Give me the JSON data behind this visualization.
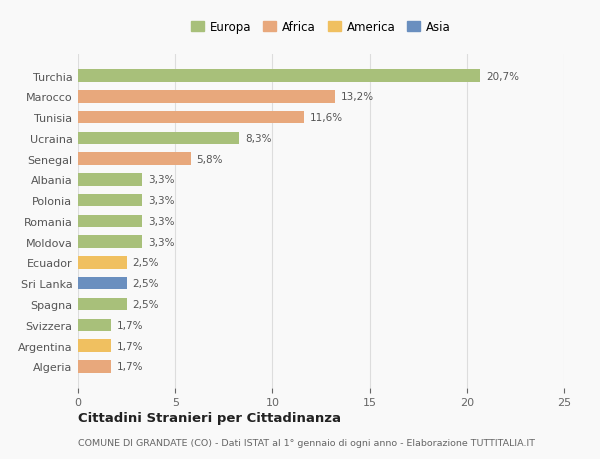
{
  "countries": [
    "Turchia",
    "Marocco",
    "Tunisia",
    "Ucraina",
    "Senegal",
    "Albania",
    "Polonia",
    "Romania",
    "Moldova",
    "Ecuador",
    "Sri Lanka",
    "Spagna",
    "Svizzera",
    "Argentina",
    "Algeria"
  ],
  "values": [
    20.7,
    13.2,
    11.6,
    8.3,
    5.8,
    3.3,
    3.3,
    3.3,
    3.3,
    2.5,
    2.5,
    2.5,
    1.7,
    1.7,
    1.7
  ],
  "labels": [
    "20,7%",
    "13,2%",
    "11,6%",
    "8,3%",
    "5,8%",
    "3,3%",
    "3,3%",
    "3,3%",
    "3,3%",
    "2,5%",
    "2,5%",
    "2,5%",
    "1,7%",
    "1,7%",
    "1,7%"
  ],
  "continents": [
    "Europa",
    "Africa",
    "Africa",
    "Europa",
    "Africa",
    "Europa",
    "Europa",
    "Europa",
    "Europa",
    "America",
    "Asia",
    "Europa",
    "Europa",
    "America",
    "Africa"
  ],
  "colors": {
    "Europa": "#a8c07a",
    "Africa": "#e8a87c",
    "America": "#f0c060",
    "Asia": "#6a8fbf"
  },
  "legend_items": [
    "Europa",
    "Africa",
    "America",
    "Asia"
  ],
  "legend_colors": [
    "#a8c07a",
    "#e8a87c",
    "#f0c060",
    "#6a8fbf"
  ],
  "xlim": [
    0,
    25
  ],
  "xticks": [
    0,
    5,
    10,
    15,
    20,
    25
  ],
  "title": "Cittadini Stranieri per Cittadinanza",
  "subtitle": "COMUNE DI GRANDATE (CO) - Dati ISTAT al 1° gennaio di ogni anno - Elaborazione TUTTITALIA.IT",
  "bg_color": "#f9f9f9",
  "bar_height": 0.6
}
